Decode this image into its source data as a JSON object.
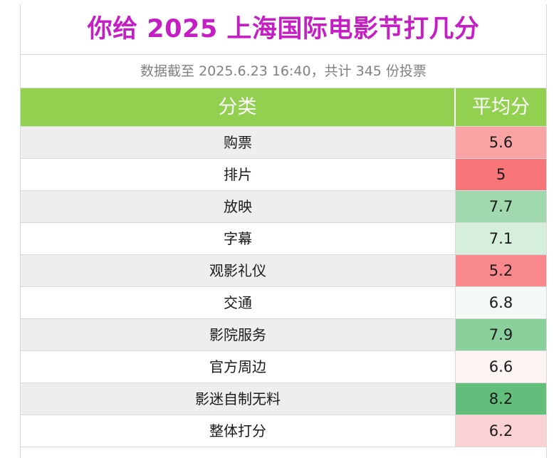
{
  "title": "你给 2025 上海国际电影节打几分",
  "subtitle": "数据截至 2025.6.23 16:40，共计 345 份投票",
  "header": {
    "category": "分类",
    "average": "平均分"
  },
  "rows": [
    {
      "name": "购票",
      "score": "5.6",
      "color": "#f8a3a4"
    },
    {
      "name": "排片",
      "score": "5",
      "color": "#f8767a"
    },
    {
      "name": "放映",
      "score": "7.7",
      "color": "#9fd9ad"
    },
    {
      "name": "字幕",
      "score": "7.1",
      "color": "#d6efdc"
    },
    {
      "name": "观影礼仪",
      "score": "5.2",
      "color": "#f8888b"
    },
    {
      "name": "交通",
      "score": "6.8",
      "color": "#f3faf5"
    },
    {
      "name": "影院服务",
      "score": "7.9",
      "color": "#89d09c"
    },
    {
      "name": "官方周边",
      "score": "6.6",
      "color": "#fcf3f3"
    },
    {
      "name": "影迷自制无料",
      "score": "8.2",
      "color": "#63be7b"
    },
    {
      "name": "整体打分",
      "score": "6.2",
      "color": "#fbd2d3"
    }
  ]
}
